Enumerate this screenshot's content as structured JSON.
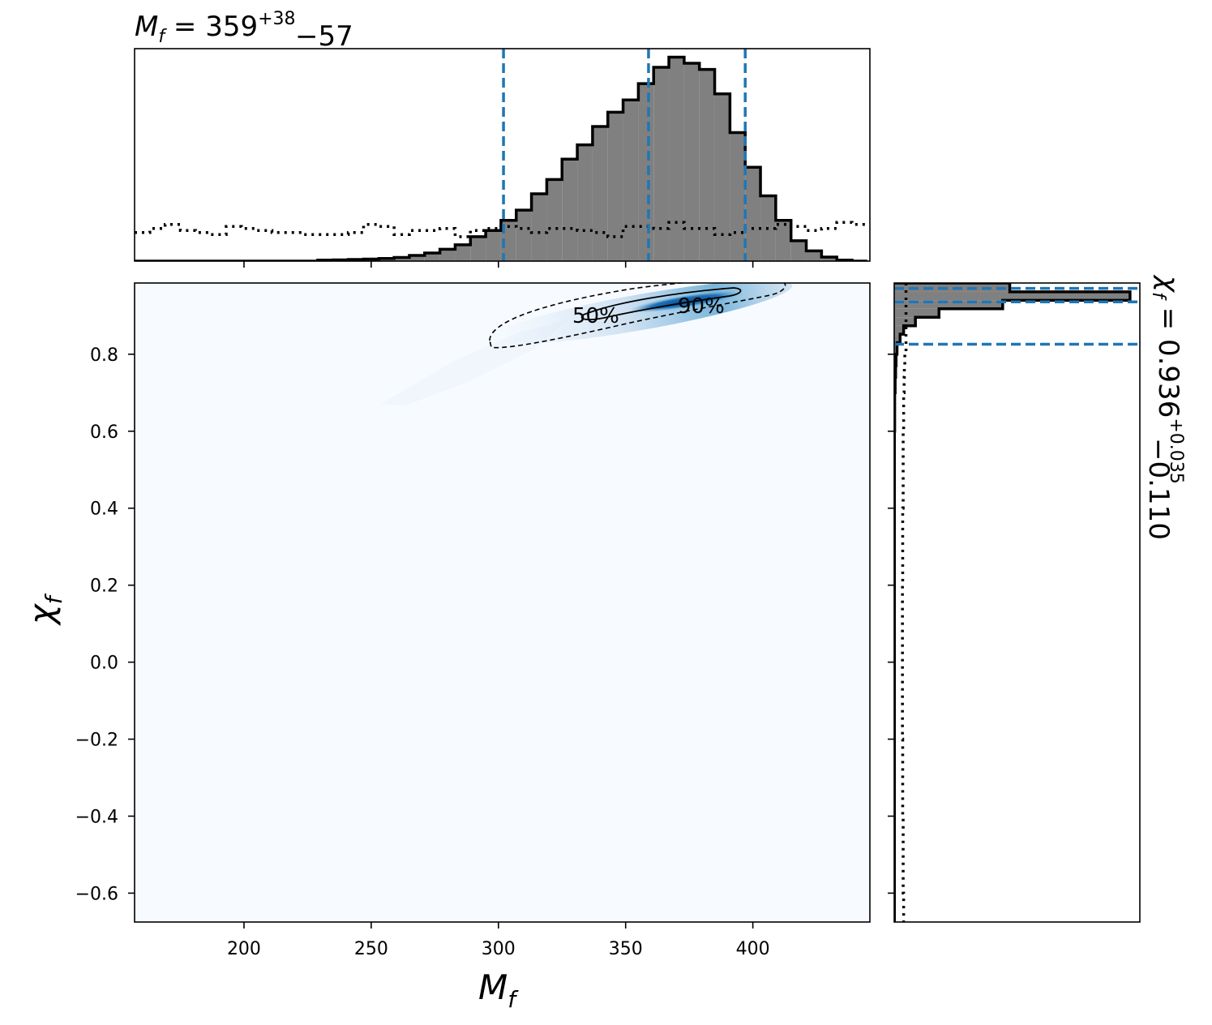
{
  "chart_data": {
    "type": "corner",
    "top_title": {
      "base": "M",
      "sub": "f",
      "value": "359",
      "plus": "+38",
      "minus": "−57"
    },
    "side_title": {
      "base": "χ",
      "sub": "f",
      "value": "0.936",
      "plus": "+0.035",
      "minus": "−0.110"
    },
    "xlabel": {
      "base": "M",
      "sub": "f"
    },
    "ylabel": {
      "base": "χ",
      "sub": "f"
    },
    "xlim": [
      157,
      446
    ],
    "ylim": [
      -0.675,
      0.985
    ],
    "xticks": [
      200,
      250,
      300,
      350,
      400
    ],
    "xtick_labels": [
      "200",
      "250",
      "300",
      "350",
      "400"
    ],
    "yticks": [
      0.8,
      0.6,
      0.4,
      0.2,
      0.0,
      -0.2,
      -0.4,
      -0.6
    ],
    "ytick_labels": [
      "0.8",
      "0.6",
      "0.4",
      "0.2",
      "0.0",
      "−0.2",
      "−0.4",
      "−0.6"
    ],
    "mf_quantiles": [
      302,
      359,
      397
    ],
    "chi_quantiles": [
      0.826,
      0.936,
      0.971
    ],
    "contour_levels": [
      "50%",
      "90%"
    ],
    "mf_hist_edges": [
      157,
      163,
      169,
      175,
      181,
      187,
      193,
      199,
      205,
      211,
      217,
      223,
      229,
      235,
      241,
      247,
      253,
      259,
      265,
      271,
      277,
      283,
      289,
      295,
      301,
      307,
      313,
      319,
      325,
      331,
      337,
      343,
      349,
      355,
      361,
      367,
      373,
      379,
      385,
      391,
      397,
      403,
      409,
      415,
      421,
      427,
      433,
      439,
      445
    ],
    "mf_hist_values": [
      0,
      0,
      0,
      0,
      0,
      0,
      0,
      0,
      0,
      0,
      0,
      0,
      0.005,
      0.006,
      0.008,
      0.01,
      0.013,
      0.018,
      0.028,
      0.04,
      0.058,
      0.08,
      0.12,
      0.15,
      0.2,
      0.25,
      0.33,
      0.4,
      0.5,
      0.57,
      0.66,
      0.73,
      0.79,
      0.87,
      0.95,
      1.0,
      0.97,
      0.94,
      0.82,
      0.63,
      0.46,
      0.32,
      0.2,
      0.1,
      0.05,
      0.02,
      0.005,
      0
    ],
    "mf_prior_values": [
      0.14,
      0.16,
      0.18,
      0.15,
      0.14,
      0.13,
      0.17,
      0.16,
      0.15,
      0.14,
      0.14,
      0.13,
      0.13,
      0.13,
      0.14,
      0.18,
      0.17,
      0.13,
      0.15,
      0.15,
      0.16,
      0.12,
      0.15,
      0.16,
      0.17,
      0.16,
      0.14,
      0.16,
      0.16,
      0.15,
      0.14,
      0.12,
      0.17,
      0.17,
      0.16,
      0.19,
      0.16,
      0.16,
      0.13,
      0.14,
      0.16,
      0.16,
      0.18,
      0.17,
      0.15,
      0.16,
      0.19,
      0.18
    ],
    "chi_hist_edges": [
      0.985,
      0.962,
      0.94,
      0.918,
      0.896,
      0.874,
      0.852,
      0.83,
      0.8,
      0.77,
      0.74,
      0.7,
      0.6,
      0.4,
      0.2,
      0.0,
      -0.2,
      -0.4,
      -0.6,
      -0.675
    ],
    "chi_hist_values": [
      0.49,
      1.0,
      0.46,
      0.19,
      0.09,
      0.04,
      0.025,
      0.012,
      0.008,
      0.006,
      0.004,
      0.002,
      0.001,
      0.001,
      0.001,
      0.001,
      0.001,
      0.001,
      0.001
    ],
    "chi_prior_values": [
      0.05,
      0.05,
      0.05,
      0.05,
      0.05,
      0.05,
      0.05,
      0.05,
      0.045,
      0.043,
      0.042,
      0.04,
      0.038,
      0.036,
      0.035,
      0.035,
      0.036,
      0.038,
      0.04
    ],
    "density_core": {
      "mf": [
        300,
        415
      ],
      "chi": [
        0.82,
        0.98
      ]
    },
    "colors": {
      "quantile_line": "#1f77b4",
      "hist_fill": "#808080",
      "density_low": "#f7fbff",
      "density_high": "#08519c"
    }
  }
}
